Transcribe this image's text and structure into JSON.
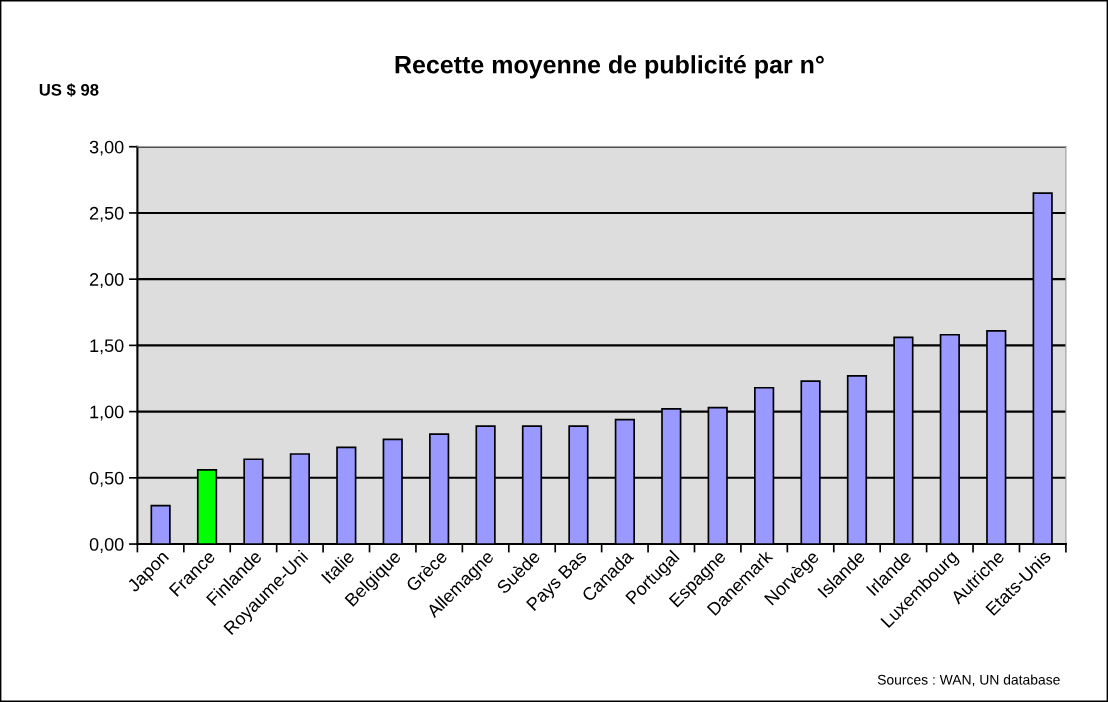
{
  "chart_data": {
    "type": "bar",
    "title": "Recette moyenne de publicité par n°",
    "ylabel": "US $ 98",
    "categories": [
      "Japon",
      "France",
      "Finlande",
      "Royaume-Uni",
      "Italie",
      "Belgique",
      "Grèce",
      "Allemagne",
      "Suède",
      "Pays Bas",
      "Canada",
      "Portugal",
      "Espagne",
      "Danemark",
      "Norvège",
      "Islande",
      "Irlande",
      "Luxembourg",
      "Autriche",
      "Etats-Unis"
    ],
    "values": [
      0.29,
      0.56,
      0.64,
      0.68,
      0.73,
      0.79,
      0.83,
      0.89,
      0.89,
      0.89,
      0.94,
      1.02,
      1.03,
      1.18,
      1.23,
      1.27,
      1.56,
      1.58,
      1.61,
      2.65
    ],
    "colors": [
      "#9999ff",
      "#00ff00",
      "#9999ff",
      "#9999ff",
      "#9999ff",
      "#9999ff",
      "#9999ff",
      "#9999ff",
      "#9999ff",
      "#9999ff",
      "#9999ff",
      "#9999ff",
      "#9999ff",
      "#9999ff",
      "#9999ff",
      "#9999ff",
      "#9999ff",
      "#9999ff",
      "#9999ff",
      "#9999ff"
    ],
    "ylim": [
      0,
      3
    ],
    "yticks": [
      {
        "value": 0,
        "label": "0,00"
      },
      {
        "value": 0.5,
        "label": "0,50"
      },
      {
        "value": 1,
        "label": "1,00"
      },
      {
        "value": 1.5,
        "label": "1,50"
      },
      {
        "value": 2,
        "label": "2,00"
      },
      {
        "value": 2.5,
        "label": "2,50"
      },
      {
        "value": 3,
        "label": "3,00"
      }
    ],
    "grid": "y",
    "annotations": [
      "Sources : WAN, UN database"
    ]
  }
}
